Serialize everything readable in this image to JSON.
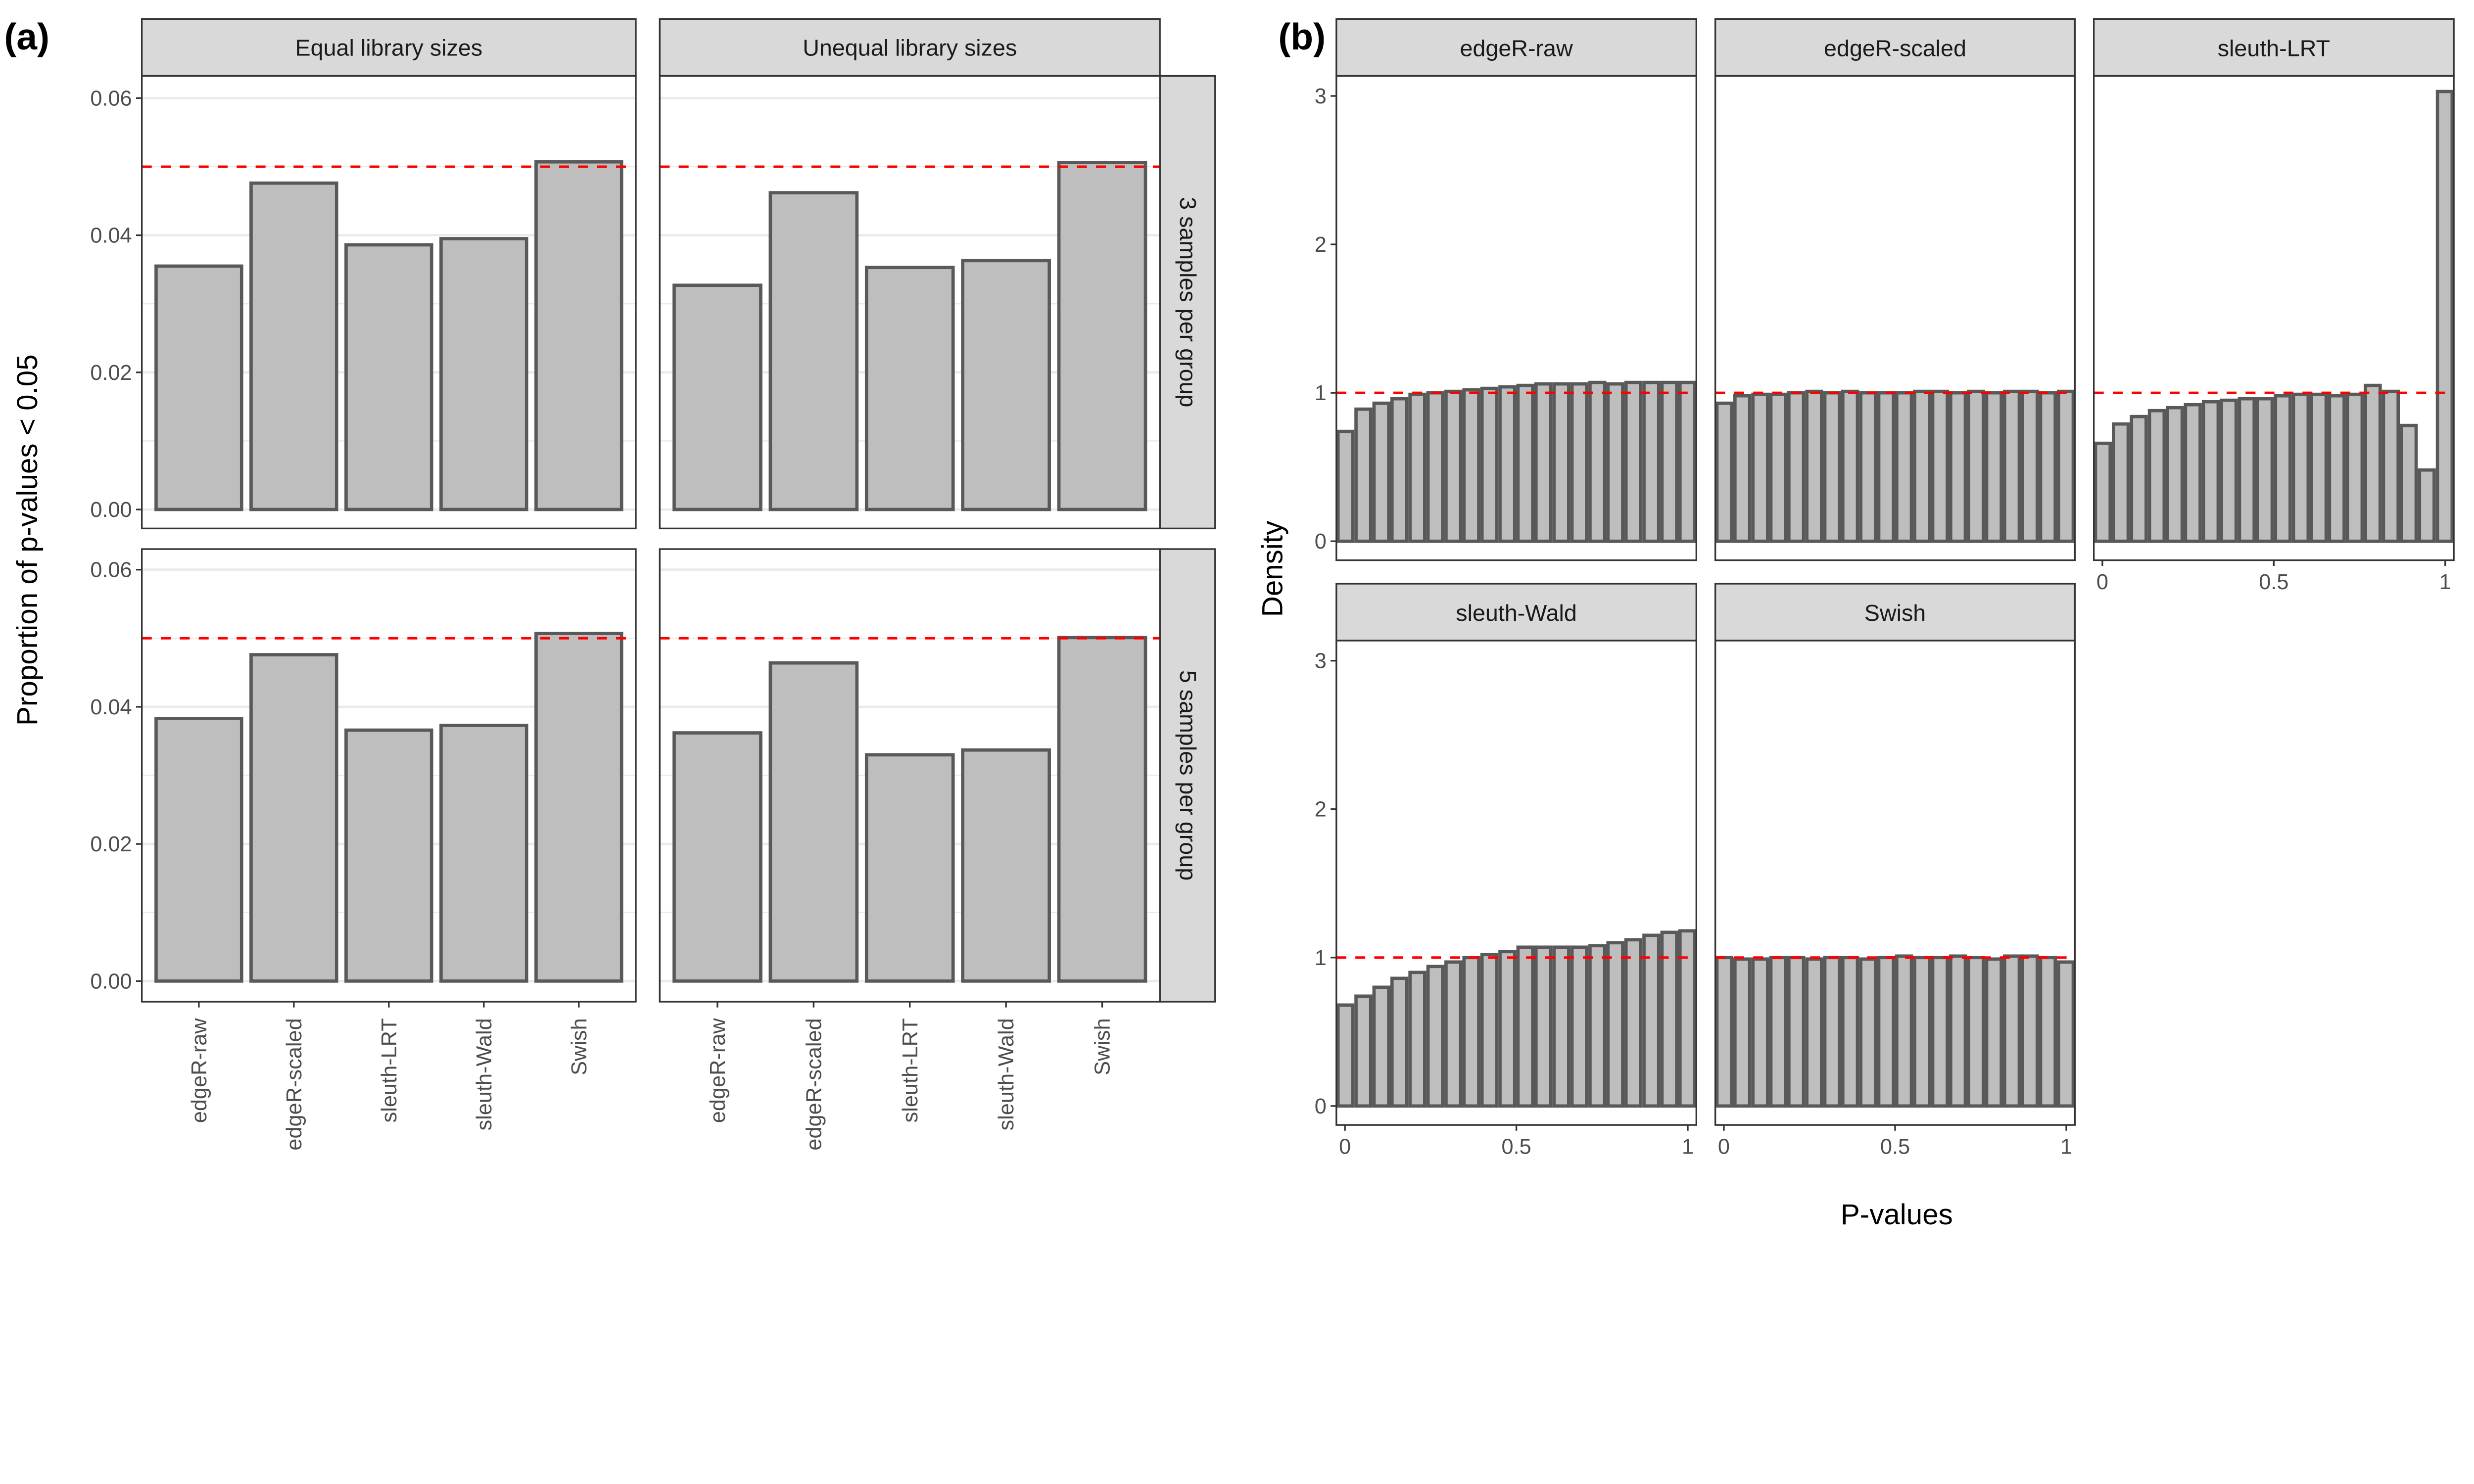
{
  "colors": {
    "bar_fill": "#BEBEBE",
    "bar_stroke": "#595959",
    "reference_line": "#FF0000",
    "strip_fill": "#D9D9D9",
    "grid": "#EBEBEB"
  },
  "chart_data": [
    {
      "panel_label": "(a)",
      "type": "bar",
      "ylabel": "Proportion of p-values < 0.05",
      "xlabel": "",
      "ylim": [
        0,
        0.063
      ],
      "yticks": [
        "0.00",
        "0.02",
        "0.04",
        "0.06"
      ],
      "reference_line": 0.05,
      "grid": true,
      "categories": [
        "edgeR-raw",
        "edgeR-scaled",
        "sleuth-LRT",
        "sleuth-Wald",
        "Swish"
      ],
      "column_facets": [
        "Equal library sizes",
        "Unequal library sizes"
      ],
      "row_facets": [
        "3 samples per group",
        "5 samples per group"
      ],
      "panels": [
        {
          "row": 0,
          "col": 0,
          "values": [
            0.0355,
            0.0476,
            0.0386,
            0.0395,
            0.0507
          ]
        },
        {
          "row": 0,
          "col": 1,
          "values": [
            0.0327,
            0.0462,
            0.0353,
            0.0363,
            0.0506
          ]
        },
        {
          "row": 1,
          "col": 0,
          "values": [
            0.0383,
            0.0476,
            0.0366,
            0.0373,
            0.0507
          ]
        },
        {
          "row": 1,
          "col": 1,
          "values": [
            0.0362,
            0.0464,
            0.033,
            0.0337,
            0.0501
          ]
        }
      ]
    },
    {
      "panel_label": "(b)",
      "type": "bar",
      "ylabel": "Density",
      "xlabel": "P-values",
      "xlim": [
        -0.025,
        1.025
      ],
      "ylim": [
        0,
        3.2
      ],
      "xticks": [
        "0",
        "0.5",
        "1"
      ],
      "yticks": [
        "0",
        "1",
        "2",
        "3"
      ],
      "reference_line": 1,
      "grid": false,
      "facets": [
        {
          "title": "edgeR-raw",
          "values": [
            0.74,
            0.89,
            0.93,
            0.96,
            0.99,
            1.0,
            1.01,
            1.02,
            1.03,
            1.04,
            1.05,
            1.06,
            1.06,
            1.06,
            1.07,
            1.06,
            1.07,
            1.07,
            1.07,
            1.07
          ]
        },
        {
          "title": "edgeR-scaled",
          "values": [
            0.93,
            0.98,
            0.99,
            0.99,
            1.0,
            1.01,
            1.0,
            1.01,
            1.0,
            1.0,
            1.0,
            1.01,
            1.01,
            1.0,
            1.01,
            1.0,
            1.01,
            1.01,
            1.0,
            1.01
          ]
        },
        {
          "title": "sleuth-LRT",
          "values": [
            0.66,
            0.79,
            0.84,
            0.88,
            0.9,
            0.92,
            0.94,
            0.95,
            0.96,
            0.96,
            0.98,
            0.99,
            0.99,
            0.98,
            0.99,
            1.05,
            1.01,
            0.78,
            0.48,
            3.03
          ]
        },
        {
          "title": "sleuth-Wald",
          "values": [
            0.68,
            0.74,
            0.8,
            0.86,
            0.9,
            0.94,
            0.97,
            1.0,
            1.02,
            1.04,
            1.07,
            1.07,
            1.07,
            1.07,
            1.08,
            1.1,
            1.12,
            1.15,
            1.17,
            1.18
          ]
        },
        {
          "title": "Swish",
          "values": [
            1.0,
            0.99,
            0.99,
            1.0,
            1.0,
            0.99,
            1.0,
            1.0,
            0.99,
            1.0,
            1.01,
            1.0,
            1.0,
            1.01,
            1.0,
            0.99,
            1.01,
            1.01,
            1.0,
            0.97
          ]
        }
      ]
    }
  ]
}
